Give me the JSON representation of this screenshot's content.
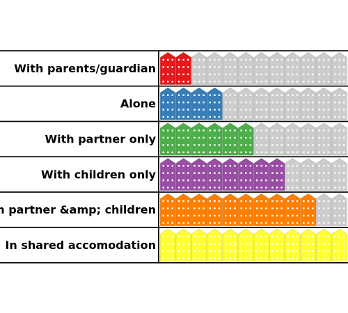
{
  "chart_data": {
    "type": "pictograph",
    "unit_icon": "house-icon",
    "units_per_row": 12,
    "empty_color": "#cccccc",
    "categories": [
      "With parents/guardian",
      "Alone",
      "With partner only",
      "With children only",
      "With partner &amp; children",
      "In shared accomodation"
    ],
    "values": [
      2,
      4,
      6,
      8,
      10,
      12
    ],
    "colors": [
      "#e41a1c",
      "#377eb8",
      "#4daf4a",
      "#984ea3",
      "#ff7f00",
      "#ffff33"
    ]
  }
}
